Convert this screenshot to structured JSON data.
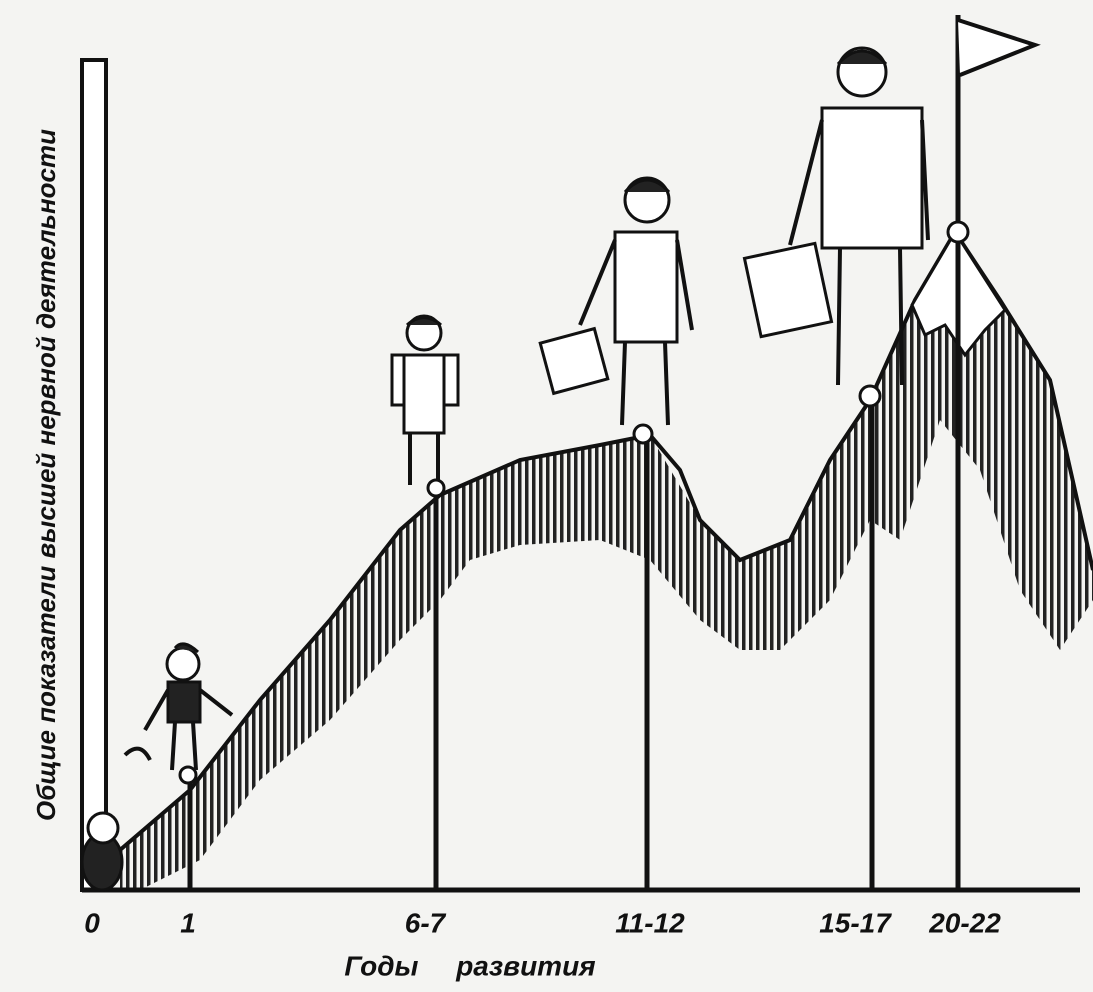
{
  "y_axis_label": "Общие показатели высшей нервной деятельности",
  "x_axis_label": "Годы развития",
  "x_labels": [
    "0",
    "1",
    "6-7",
    "11-12",
    "15-17",
    "20-22"
  ]
}
